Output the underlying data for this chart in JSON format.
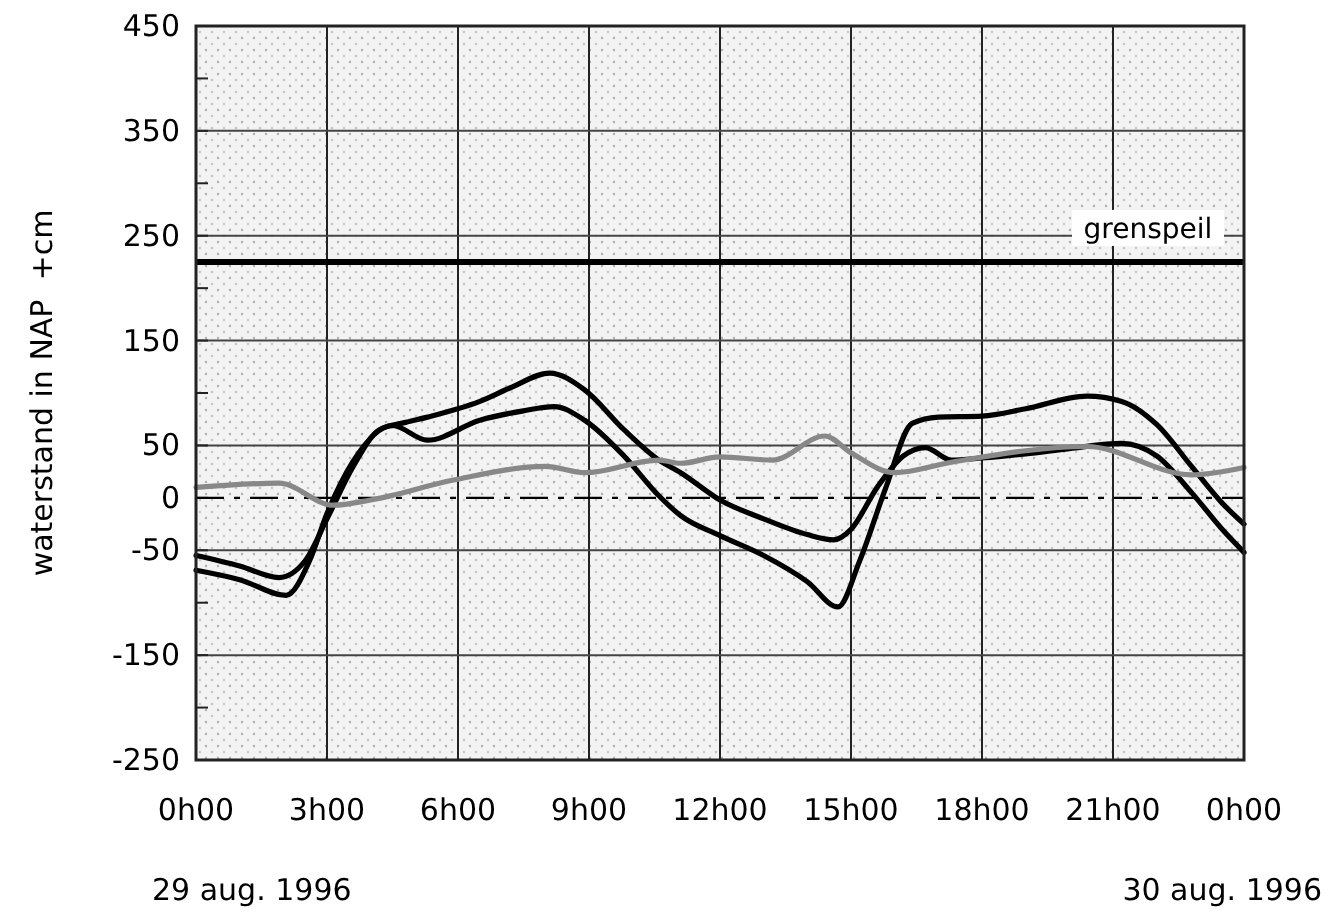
{
  "chart_data": {
    "type": "line",
    "ylabel": "waterstand in NAP  +cm",
    "xlim": [
      "1996-08-29T00:00",
      "1996-08-30T00:00"
    ],
    "xticks": [
      {
        "value": "1996-08-29T00:00",
        "label": "0h00"
      },
      {
        "value": "1996-08-29T03:00",
        "label": "3h00"
      },
      {
        "value": "1996-08-29T06:00",
        "label": "6h00"
      },
      {
        "value": "1996-08-29T09:00",
        "label": "9h00"
      },
      {
        "value": "1996-08-29T12:00",
        "label": "12h00"
      },
      {
        "value": "1996-08-29T15:00",
        "label": "15h00"
      },
      {
        "value": "1996-08-29T18:00",
        "label": "18h00"
      },
      {
        "value": "1996-08-29T21:00",
        "label": "21h00"
      },
      {
        "value": "1996-08-30T00:00",
        "label": "0h00"
      }
    ],
    "ylim": [
      -250,
      450
    ],
    "yticks": [
      -250,
      {
        "value": -200,
        "label": null
      },
      -150,
      {
        "value": -100,
        "label": null
      },
      -50,
      0,
      50,
      {
        "value": 100,
        "label": null
      },
      150,
      {
        "value": 200,
        "label": null
      },
      250,
      {
        "value": 300,
        "label": null
      },
      350,
      {
        "value": 400,
        "label": null
      },
      450
    ],
    "grid": true,
    "line_style": "solid",
    "marker": "none",
    "series": [
      {
        "color": "#000000",
        "x": [
          "1996-08-29T00:00",
          "1996-08-29T01:00",
          "1996-08-29T01:54",
          "1996-08-29T02:30",
          "1996-08-29T03:00",
          "1996-08-29T03:36",
          "1996-08-29T04:12",
          "1996-08-29T04:48",
          "1996-08-29T05:18",
          "1996-08-29T06:30",
          "1996-08-29T07:12",
          "1996-08-29T08:06",
          "1996-08-29T08:54",
          "1996-08-29T09:48",
          "1996-08-29T10:36",
          "1996-08-29T11:06",
          "1996-08-29T12:00",
          "1996-08-29T13:00",
          "1996-08-29T14:00",
          "1996-08-29T14:36",
          "1996-08-29T15:00",
          "1996-08-29T15:36",
          "1996-08-29T16:12",
          "1996-08-29T16:42",
          "1996-08-29T17:18",
          "1996-08-29T18:00",
          "1996-08-29T19:00",
          "1996-08-29T20:00",
          "1996-08-29T21:12",
          "1996-08-29T22:00",
          "1996-08-29T22:48",
          "1996-08-29T23:30",
          "1996-08-30T00:00"
        ],
        "values": [
          -55,
          -65,
          -76,
          -60,
          -20,
          30,
          65,
          72,
          77,
          92,
          105,
          119,
          103,
          65,
          36,
          24,
          -2,
          -20,
          -35,
          -40,
          -30,
          10,
          40,
          48,
          36,
          38,
          42,
          47,
          52,
          40,
          5,
          -30,
          -52
        ]
      },
      {
        "color": "#000000",
        "x": [
          "1996-08-29T00:00",
          "1996-08-29T01:00",
          "1996-08-29T02:04",
          "1996-08-29T02:36",
          "1996-08-29T03:00",
          "1996-08-29T03:36",
          "1996-08-29T04:30",
          "1996-08-29T05:18",
          "1996-08-29T06:30",
          "1996-08-29T07:30",
          "1996-08-29T08:12",
          "1996-08-29T08:54",
          "1996-08-29T09:48",
          "1996-08-29T10:36",
          "1996-08-29T11:06",
          "1996-08-29T12:00",
          "1996-08-29T13:00",
          "1996-08-29T14:00",
          "1996-08-29T14:42",
          "1996-08-29T15:12",
          "1996-08-29T15:48",
          "1996-08-29T16:24",
          "1996-08-29T17:00",
          "1996-08-29T18:00",
          "1996-08-29T19:00",
          "1996-08-29T20:24",
          "1996-08-29T21:12",
          "1996-08-29T22:00",
          "1996-08-29T22:48",
          "1996-08-29T23:30",
          "1996-08-30T00:00"
        ],
        "values": [
          -69,
          -78,
          -93,
          -60,
          -15,
          35,
          69,
          55,
          74,
          83,
          87,
          74,
          40,
          2,
          -17,
          -36,
          -55,
          -80,
          -104,
          -60,
          10,
          71,
          77,
          78,
          85,
          97,
          92,
          70,
          30,
          -5,
          -25
        ]
      },
      {
        "color": "#888888",
        "x": [
          "1996-08-29T00:00",
          "1996-08-29T01:54",
          "1996-08-29T03:09",
          "1996-08-29T04:00",
          "1996-08-29T05:54",
          "1996-08-29T08:00",
          "1996-08-29T08:54",
          "1996-08-29T10:36",
          "1996-08-29T11:06",
          "1996-08-29T12:00",
          "1996-08-29T13:12",
          "1996-08-29T14:24",
          "1996-08-29T15:00",
          "1996-08-29T16:00",
          "1996-08-29T17:18",
          "1996-08-29T20:24",
          "1996-08-29T22:48",
          "1996-08-30T00:00"
        ],
        "values": [
          10,
          14,
          -7,
          -2,
          17,
          30,
          24,
          36,
          33,
          39,
          36,
          59,
          43,
          24,
          34,
          49,
          22,
          29
        ]
      }
    ],
    "ref_lines": [
      {
        "axis": "y",
        "value": 225,
        "label": "grenspeil",
        "line_style": "solid",
        "color": "#000000"
      },
      {
        "axis": "y",
        "value": 0,
        "line_style": "dashed",
        "color": "#000000"
      }
    ],
    "annotations": [
      "29 aug. 1996",
      "30 aug. 1996"
    ]
  }
}
